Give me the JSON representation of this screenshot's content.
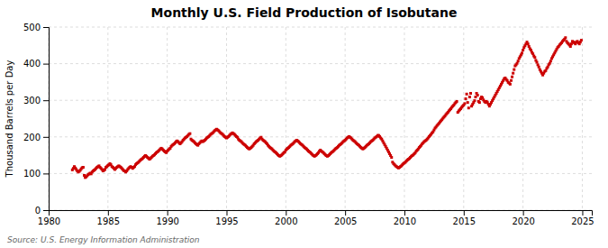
{
  "chart_data": {
    "type": "scatter",
    "title": "Monthly U.S. Field Production of Isobutane",
    "y_label": "Thousand Barrels per Day",
    "source": "Source: U.S. Energy Information Administration",
    "color": "#cc0000",
    "marker": "square",
    "grid": true,
    "xlim": [
      1980,
      2025.8
    ],
    "xticks": [
      1980,
      1985,
      1990,
      1995,
      2000,
      2005,
      2010,
      2015,
      2020,
      2025
    ],
    "ylim": [
      0,
      500
    ],
    "yticks": [
      0,
      100,
      200,
      300,
      400,
      500
    ],
    "x": [
      1982,
      1982.0833333333333,
      1982.1666666666667,
      1982.25,
      1982.3333333333333,
      1982.4166666666667,
      1982.5,
      1982.5833333333333,
      1982.6666666666667,
      1982.75,
      1982.8333333333333,
      1982.9166666666667,
      1983,
      1983.0833333333333,
      1983.1666666666667,
      1983.25,
      1983.3333333333333,
      1983.4166666666667,
      1983.5,
      1983.5833333333333,
      1983.6666666666667,
      1983.75,
      1983.8333333333333,
      1983.9166666666667,
      1984,
      1984.0833333333333,
      1984.1666666666667,
      1984.25,
      1984.3333333333333,
      1984.4166666666667,
      1984.5,
      1984.5833333333333,
      1984.6666666666667,
      1984.75,
      1984.8333333333333,
      1984.9166666666667,
      1985,
      1985.0833333333333,
      1985.1666666666667,
      1985.25,
      1985.3333333333333,
      1985.4166666666667,
      1985.5,
      1985.5833333333333,
      1985.6666666666667,
      1985.75,
      1985.8333333333333,
      1985.9166666666667,
      1986,
      1986.0833333333333,
      1986.1666666666667,
      1986.25,
      1986.3333333333333,
      1986.4166666666667,
      1986.5,
      1986.5833333333333,
      1986.6666666666667,
      1986.75,
      1986.8333333333333,
      1986.9166666666667,
      1987,
      1987.0833333333333,
      1987.1666666666667,
      1987.25,
      1987.3333333333333,
      1987.4166666666667,
      1987.5,
      1987.5833333333333,
      1987.6666666666667,
      1987.75,
      1987.8333333333333,
      1987.9166666666667,
      1988,
      1988.0833333333333,
      1988.1666666666667,
      1988.25,
      1988.3333333333333,
      1988.4166666666667,
      1988.5,
      1988.5833333333333,
      1988.6666666666667,
      1988.75,
      1988.8333333333333,
      1988.9166666666667,
      1989,
      1989.0833333333333,
      1989.1666666666667,
      1989.25,
      1989.3333333333333,
      1989.4166666666667,
      1989.5,
      1989.5833333333333,
      1989.6666666666667,
      1989.75,
      1989.8333333333333,
      1989.9166666666667,
      1990,
      1990.0833333333333,
      1990.1666666666667,
      1990.25,
      1990.3333333333333,
      1990.4166666666667,
      1990.5,
      1990.5833333333333,
      1990.6666666666667,
      1990.75,
      1990.8333333333333,
      1990.9166666666667,
      1991,
      1991.0833333333333,
      1991.1666666666667,
      1991.25,
      1991.3333333333333,
      1991.4166666666667,
      1991.5,
      1991.5833333333333,
      1991.6666666666667,
      1991.75,
      1991.8333333333333,
      1991.9166666666667,
      1992,
      1992.0833333333333,
      1992.1666666666667,
      1992.25,
      1992.3333333333333,
      1992.4166666666667,
      1992.5,
      1992.5833333333333,
      1992.6666666666667,
      1992.75,
      1992.8333333333333,
      1992.9166666666667,
      1993,
      1993.0833333333333,
      1993.1666666666667,
      1993.25,
      1993.3333333333333,
      1993.4166666666667,
      1993.5,
      1993.5833333333333,
      1993.6666666666667,
      1993.75,
      1993.8333333333333,
      1993.9166666666667,
      1994,
      1994.0833333333333,
      1994.1666666666667,
      1994.25,
      1994.3333333333333,
      1994.4166666666667,
      1994.5,
      1994.5833333333333,
      1994.6666666666667,
      1994.75,
      1994.8333333333333,
      1994.9166666666667,
      1995,
      1995.0833333333333,
      1995.1666666666667,
      1995.25,
      1995.3333333333333,
      1995.4166666666667,
      1995.5,
      1995.5833333333333,
      1995.6666666666667,
      1995.75,
      1995.8333333333333,
      1995.9166666666667,
      1996,
      1996.0833333333333,
      1996.1666666666667,
      1996.25,
      1996.3333333333333,
      1996.4166666666667,
      1996.5,
      1996.5833333333333,
      1996.6666666666667,
      1996.75,
      1996.8333333333333,
      1996.9166666666667,
      1997,
      1997.0833333333333,
      1997.1666666666667,
      1997.25,
      1997.3333333333333,
      1997.4166666666667,
      1997.5,
      1997.5833333333333,
      1997.6666666666667,
      1997.75,
      1997.8333333333333,
      1997.9166666666667,
      1998,
      1998.0833333333333,
      1998.1666666666667,
      1998.25,
      1998.3333333333333,
      1998.4166666666667,
      1998.5,
      1998.5833333333333,
      1998.6666666666667,
      1998.75,
      1998.8333333333333,
      1998.9166666666667,
      1999,
      1999.0833333333333,
      1999.1666666666667,
      1999.25,
      1999.3333333333333,
      1999.4166666666667,
      1999.5,
      1999.5833333333333,
      1999.6666666666667,
      1999.75,
      1999.8333333333333,
      1999.9166666666667,
      2000,
      2000.0833333333333,
      2000.1666666666667,
      2000.25,
      2000.3333333333333,
      2000.4166666666667,
      2000.5,
      2000.5833333333333,
      2000.6666666666667,
      2000.75,
      2000.8333333333333,
      2000.9166666666667,
      2001,
      2001.0833333333333,
      2001.1666666666667,
      2001.25,
      2001.3333333333333,
      2001.4166666666667,
      2001.5,
      2001.5833333333333,
      2001.6666666666667,
      2001.75,
      2001.8333333333333,
      2001.9166666666667,
      2002,
      2002.0833333333333,
      2002.1666666666667,
      2002.25,
      2002.3333333333333,
      2002.4166666666667,
      2002.5,
      2002.5833333333333,
      2002.6666666666667,
      2002.75,
      2002.8333333333333,
      2002.9166666666667,
      2003,
      2003.0833333333333,
      2003.1666666666667,
      2003.25,
      2003.3333333333333,
      2003.4166666666667,
      2003.5,
      2003.5833333333333,
      2003.6666666666667,
      2003.75,
      2003.8333333333333,
      2003.9166666666667,
      2004,
      2004.0833333333333,
      2004.1666666666667,
      2004.25,
      2004.3333333333333,
      2004.4166666666667,
      2004.5,
      2004.5833333333333,
      2004.6666666666667,
      2004.75,
      2004.8333333333333,
      2004.9166666666667,
      2005,
      2005.0833333333333,
      2005.1666666666667,
      2005.25,
      2005.3333333333333,
      2005.4166666666667,
      2005.5,
      2005.5833333333333,
      2005.6666666666667,
      2005.75,
      2005.8333333333333,
      2005.9166666666667,
      2006,
      2006.0833333333333,
      2006.1666666666667,
      2006.25,
      2006.3333333333333,
      2006.4166666666667,
      2006.5,
      2006.5833333333333,
      2006.6666666666667,
      2006.75,
      2006.8333333333333,
      2006.9166666666667,
      2007,
      2007.0833333333333,
      2007.1666666666667,
      2007.25,
      2007.3333333333333,
      2007.4166666666667,
      2007.5,
      2007.5833333333333,
      2007.6666666666667,
      2007.75,
      2007.8333333333333,
      2007.9166666666667,
      2008,
      2008.0833333333333,
      2008.1666666666667,
      2008.25,
      2008.3333333333333,
      2008.4166666666667,
      2008.5,
      2008.5833333333333,
      2008.6666666666667,
      2008.75,
      2008.8333333333333,
      2008.9166666666667,
      2009,
      2009.0833333333333,
      2009.1666666666667,
      2009.25,
      2009.3333333333333,
      2009.4166666666667,
      2009.5,
      2009.5833333333333,
      2009.6666666666667,
      2009.75,
      2009.8333333333333,
      2009.9166666666667,
      2010,
      2010.0833333333333,
      2010.1666666666667,
      2010.25,
      2010.3333333333333,
      2010.4166666666667,
      2010.5,
      2010.5833333333333,
      2010.6666666666667,
      2010.75,
      2010.8333333333333,
      2010.9166666666667,
      2011,
      2011.0833333333333,
      2011.1666666666667,
      2011.25,
      2011.3333333333333,
      2011.4166666666667,
      2011.5,
      2011.5833333333333,
      2011.6666666666667,
      2011.75,
      2011.8333333333333,
      2011.9166666666667,
      2012,
      2012.0833333333333,
      2012.1666666666667,
      2012.25,
      2012.3333333333333,
      2012.4166666666667,
      2012.5,
      2012.5833333333333,
      2012.6666666666667,
      2012.75,
      2012.8333333333333,
      2012.9166666666667,
      2013,
      2013.0833333333333,
      2013.1666666666667,
      2013.25,
      2013.3333333333333,
      2013.4166666666667,
      2013.5,
      2013.5833333333333,
      2013.6666666666667,
      2013.75,
      2013.8333333333333,
      2013.9166666666667,
      2014,
      2014.0833333333333,
      2014.1666666666667,
      2014.25,
      2014.3333333333333,
      2014.4166666666667,
      2014.5,
      2014.5833333333333,
      2014.6666666666667,
      2014.75,
      2014.8333333333333,
      2014.9166666666667,
      2015,
      2015.0833333333333,
      2015.1666666666667,
      2015.25,
      2015.3333333333333,
      2015.4166666666667,
      2015.5,
      2015.5833333333333,
      2015.6666666666667,
      2015.75,
      2015.8333333333333,
      2015.9166666666667,
      2016,
      2016.0833333333333,
      2016.1666666666667,
      2016.25,
      2016.3333333333333,
      2016.4166666666667,
      2016.5,
      2016.5833333333333,
      2016.6666666666667,
      2016.75,
      2016.8333333333333,
      2016.9166666666667,
      2017,
      2017.0833333333333,
      2017.1666666666667,
      2017.25,
      2017.3333333333333,
      2017.4166666666667,
      2017.5,
      2017.5833333333333,
      2017.6666666666667,
      2017.75,
      2017.8333333333333,
      2017.9166666666667,
      2018,
      2018.0833333333333,
      2018.1666666666667,
      2018.25,
      2018.3333333333333,
      2018.4166666666667,
      2018.5,
      2018.5833333333333,
      2018.6666666666667,
      2018.75,
      2018.8333333333333,
      2018.9166666666667,
      2019,
      2019.0833333333333,
      2019.1666666666667,
      2019.25,
      2019.3333333333333,
      2019.4166666666667,
      2019.5,
      2019.5833333333333,
      2019.6666666666667,
      2019.75,
      2019.8333333333333,
      2019.9166666666667,
      2020,
      2020.0833333333333,
      2020.1666666666667,
      2020.25,
      2020.3333333333333,
      2020.4166666666667,
      2020.5,
      2020.5833333333333,
      2020.6666666666667,
      2020.75,
      2020.8333333333333,
      2020.9166666666667,
      2021,
      2021.0833333333333,
      2021.1666666666667,
      2021.25,
      2021.3333333333333,
      2021.4166666666667,
      2021.5,
      2021.5833333333333,
      2021.6666666666667,
      2021.75,
      2021.8333333333333,
      2021.9166666666667,
      2022,
      2022.0833333333333,
      2022.1666666666667,
      2022.25,
      2022.3333333333333,
      2022.4166666666667,
      2022.5,
      2022.5833333333333,
      2022.6666666666667,
      2022.75,
      2022.8333333333333,
      2022.9166666666667,
      2023,
      2023.0833333333333,
      2023.1666666666667,
      2023.25,
      2023.3333333333333,
      2023.4166666666667,
      2023.5,
      2023.5833333333333,
      2023.6666666666667,
      2023.75,
      2023.8333333333333,
      2023.9166666666667,
      2024,
      2024.0833333333333,
      2024.1666666666667,
      2024.25,
      2024.3333333333333,
      2024.4166666666667,
      2024.5,
      2024.5833333333333,
      2024.6666666666667,
      2024.75,
      2024.8333333333333,
      2024.9166666666667
    ],
    "values": [
      110,
      114,
      119,
      115,
      111,
      107,
      104,
      106,
      109,
      113,
      116,
      117,
      95,
      89,
      91,
      94,
      97,
      99,
      101,
      99,
      104,
      107,
      109,
      111,
      114,
      117,
      119,
      121,
      117,
      114,
      111,
      107,
      109,
      111,
      117,
      119,
      122,
      124,
      127,
      124,
      119,
      117,
      114,
      111,
      114,
      117,
      119,
      121,
      119,
      117,
      114,
      111,
      108,
      107,
      104,
      107,
      111,
      114,
      117,
      119,
      117,
      114,
      117,
      119,
      124,
      127,
      129,
      131,
      134,
      137,
      139,
      141,
      144,
      147,
      149,
      147,
      144,
      142,
      139,
      141,
      144,
      147,
      149,
      151,
      154,
      157,
      159,
      161,
      164,
      167,
      169,
      167,
      164,
      161,
      159,
      157,
      161,
      164,
      167,
      169,
      174,
      177,
      179,
      181,
      184,
      187,
      189,
      187,
      184,
      181,
      184,
      187,
      191,
      194,
      197,
      199,
      201,
      204,
      207,
      209,
      194,
      191,
      189,
      187,
      184,
      181,
      179,
      177,
      181,
      184,
      187,
      189,
      187,
      189,
      191,
      194,
      197,
      199,
      201,
      204,
      207,
      209,
      211,
      214,
      217,
      219,
      221,
      219,
      217,
      214,
      211,
      209,
      207,
      204,
      201,
      199,
      197,
      199,
      201,
      204,
      207,
      209,
      211,
      209,
      207,
      204,
      201,
      199,
      194,
      191,
      189,
      187,
      184,
      181,
      179,
      177,
      174,
      171,
      169,
      167,
      169,
      171,
      174,
      177,
      181,
      184,
      187,
      189,
      191,
      194,
      197,
      199,
      194,
      191,
      189,
      187,
      184,
      181,
      177,
      174,
      171,
      169,
      167,
      164,
      161,
      159,
      157,
      154,
      151,
      149,
      147,
      149,
      151,
      154,
      157,
      159,
      164,
      167,
      169,
      171,
      174,
      177,
      179,
      181,
      184,
      187,
      189,
      191,
      189,
      187,
      184,
      181,
      179,
      177,
      174,
      171,
      169,
      167,
      164,
      161,
      159,
      157,
      154,
      151,
      149,
      147,
      149,
      151,
      154,
      157,
      161,
      164,
      161,
      159,
      157,
      154,
      151,
      149,
      147,
      149,
      151,
      154,
      157,
      159,
      161,
      164,
      167,
      169,
      171,
      174,
      177,
      179,
      181,
      184,
      187,
      189,
      191,
      194,
      197,
      199,
      201,
      199,
      197,
      194,
      191,
      189,
      187,
      184,
      181,
      179,
      177,
      174,
      171,
      169,
      167,
      169,
      171,
      174,
      177,
      179,
      181,
      184,
      187,
      189,
      191,
      194,
      197,
      199,
      201,
      204,
      204,
      201,
      197,
      194,
      189,
      184,
      179,
      174,
      169,
      164,
      159,
      154,
      149,
      144,
      131,
      127,
      124,
      121,
      119,
      117,
      115,
      117,
      119,
      121,
      124,
      127,
      129,
      131,
      134,
      137,
      139,
      141,
      144,
      147,
      149,
      151,
      154,
      157,
      161,
      164,
      167,
      171,
      174,
      177,
      181,
      184,
      187,
      189,
      191,
      194,
      197,
      201,
      204,
      207,
      211,
      214,
      219,
      224,
      227,
      231,
      234,
      237,
      241,
      244,
      247,
      251,
      254,
      257,
      261,
      264,
      267,
      271,
      274,
      277,
      281,
      284,
      287,
      291,
      294,
      297,
      267,
      271,
      274,
      277,
      281,
      284,
      287,
      291,
      304,
      317,
      294,
      279,
      309,
      319,
      284,
      289,
      294,
      299,
      309,
      319,
      314,
      297,
      294,
      304,
      309,
      307,
      301,
      297,
      294,
      297,
      294,
      289,
      284,
      289,
      294,
      299,
      304,
      309,
      314,
      319,
      324,
      329,
      334,
      339,
      344,
      349,
      354,
      359,
      361,
      357,
      354,
      349,
      347,
      344,
      354,
      364,
      374,
      384,
      394,
      397,
      401,
      407,
      414,
      419,
      424,
      429,
      437,
      444,
      449,
      454,
      459,
      454,
      447,
      441,
      437,
      431,
      427,
      421,
      417,
      409,
      404,
      397,
      391,
      384,
      379,
      374,
      369,
      374,
      379,
      381,
      387,
      391,
      397,
      401,
      407,
      414,
      419,
      424,
      429,
      434,
      439,
      444,
      447,
      451,
      454,
      457,
      461,
      464,
      467,
      471,
      461,
      457,
      454,
      451,
      447,
      454,
      461,
      459,
      457,
      454,
      459,
      461,
      457,
      454,
      459,
      464
    ]
  }
}
